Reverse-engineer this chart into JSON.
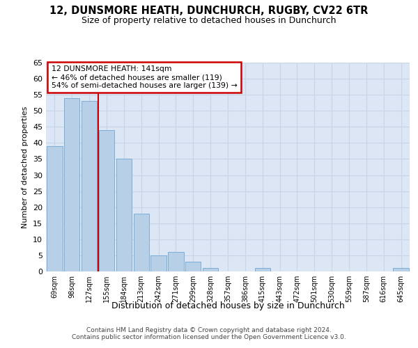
{
  "title1": "12, DUNSMORE HEATH, DUNCHURCH, RUGBY, CV22 6TR",
  "title2": "Size of property relative to detached houses in Dunchurch",
  "xlabel": "Distribution of detached houses by size in Dunchurch",
  "ylabel": "Number of detached properties",
  "categories": [
    "69sqm",
    "98sqm",
    "127sqm",
    "155sqm",
    "184sqm",
    "213sqm",
    "242sqm",
    "271sqm",
    "299sqm",
    "328sqm",
    "357sqm",
    "386sqm",
    "415sqm",
    "443sqm",
    "472sqm",
    "501sqm",
    "530sqm",
    "559sqm",
    "587sqm",
    "616sqm",
    "645sqm"
  ],
  "values": [
    39,
    54,
    53,
    44,
    35,
    18,
    5,
    6,
    3,
    1,
    0,
    0,
    1,
    0,
    0,
    0,
    0,
    0,
    0,
    0,
    1
  ],
  "bar_color": "#b8cfe8",
  "bar_edge_color": "#7aaed6",
  "ylim": [
    0,
    65
  ],
  "yticks": [
    0,
    5,
    10,
    15,
    20,
    25,
    30,
    35,
    40,
    45,
    50,
    55,
    60,
    65
  ],
  "annotation_title": "12 DUNSMORE HEATH: 141sqm",
  "annotation_line1": "← 46% of detached houses are smaller (119)",
  "annotation_line2": "54% of semi-detached houses are larger (139) →",
  "annotation_box_color": "#ffffff",
  "annotation_box_edge_color": "#cc0000",
  "vline_color": "#cc0000",
  "vline_x": 2.5,
  "footer1": "Contains HM Land Registry data © Crown copyright and database right 2024.",
  "footer2": "Contains public sector information licensed under the Open Government Licence v3.0.",
  "grid_color": "#c8d4e8",
  "background_color": "#dce6f5"
}
